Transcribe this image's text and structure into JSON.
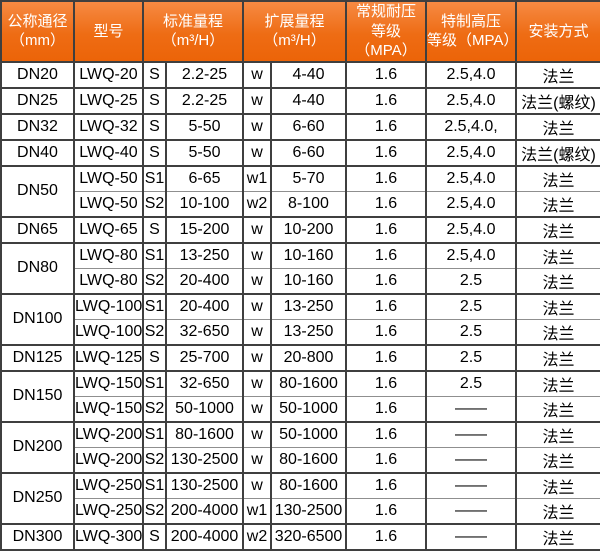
{
  "colors": {
    "header_bg_top": "#f68a43",
    "header_bg_mid": "#ee6c14",
    "header_bg_bottom": "#ec6408",
    "header_text": "#ffffff",
    "border_dark": "#3f3f3f",
    "border_thin": "#8f8f8f",
    "body_text": "#000000",
    "body_bg": "#ffffff"
  },
  "table": {
    "headers": [
      {
        "key": "diameter",
        "label": "公称通径\n（mm）",
        "colspan": 1
      },
      {
        "key": "model",
        "label": "型号",
        "colspan": 1
      },
      {
        "key": "standard-range",
        "label": "标准量程\n（m³/H）",
        "colspan": 2
      },
      {
        "key": "extended-range",
        "label": "扩展量程\n（m³/H）",
        "colspan": 2
      },
      {
        "key": "normal-pressure",
        "label": "常规耐压\n等级（MPA）",
        "colspan": 1
      },
      {
        "key": "special-pressure",
        "label": "特制高压\n等级（MPA）",
        "colspan": 1
      },
      {
        "key": "install",
        "label": "安装方式",
        "colspan": 1
      }
    ],
    "rows": [
      {
        "dn": "DN20",
        "span": 1,
        "model": "LWQ-20",
        "s": "S",
        "std": "2.2-25",
        "w": "w",
        "ext": "4-40",
        "normal": "1.6",
        "special": "2.5,4.0",
        "install": "法兰",
        "end": true
      },
      {
        "dn": "DN25",
        "span": 1,
        "model": "LWQ-25",
        "s": "S",
        "std": "2.2-25",
        "w": "w",
        "ext": "4-40",
        "normal": "1.6",
        "special": "2.5,4.0",
        "install": "法兰(螺纹)",
        "end": true
      },
      {
        "dn": "DN32",
        "span": 1,
        "model": "LWQ-32",
        "s": "S",
        "std": "5-50",
        "w": "w",
        "ext": "6-60",
        "normal": "1.6",
        "special": "2.5,4.0,",
        "install": "法兰",
        "end": true
      },
      {
        "dn": "DN40",
        "span": 1,
        "model": "LWQ-40",
        "s": "S",
        "std": "5-50",
        "w": "w",
        "ext": "6-60",
        "normal": "1.6",
        "special": "2.5,4.0",
        "install": "法兰(螺纹)",
        "end": true
      },
      {
        "dn": "DN50",
        "span": 2,
        "model": "LWQ-50",
        "s": "S1",
        "std": "6-65",
        "w": "w1",
        "ext": "5-70",
        "normal": "1.6",
        "special": "2.5,4.0",
        "install": "法兰",
        "end": false
      },
      {
        "model": "LWQ-50",
        "s": "S2",
        "std": "10-100",
        "w": "w2",
        "ext": "8-100",
        "normal": "1.6",
        "special": "2.5,4.0",
        "install": "法兰",
        "end": true
      },
      {
        "dn": "DN65",
        "span": 1,
        "model": "LWQ-65",
        "s": "S",
        "std": "15-200",
        "w": "w",
        "ext": "10-200",
        "normal": "1.6",
        "special": "2.5,4.0",
        "install": "法兰",
        "end": true
      },
      {
        "dn": "DN80",
        "span": 2,
        "model": "LWQ-80",
        "s": "S1",
        "std": "13-250",
        "w": "w",
        "ext": "10-160",
        "normal": "1.6",
        "special": "2.5,4.0",
        "install": "法兰",
        "end": false
      },
      {
        "model": "LWQ-80",
        "s": "S2",
        "std": "20-400",
        "w": "w",
        "ext": "10-160",
        "normal": "1.6",
        "special": "2.5",
        "install": "法兰",
        "end": true
      },
      {
        "dn": "DN100",
        "span": 2,
        "model": "LWQ-100",
        "s": "S1",
        "std": "20-400",
        "w": "w",
        "ext": "13-250",
        "normal": "1.6",
        "special": "2.5",
        "install": "法兰",
        "end": false
      },
      {
        "model": "LWQ-100",
        "s": "S2",
        "std": "32-650",
        "w": "w",
        "ext": "13-250",
        "normal": "1.6",
        "special": "2.5",
        "install": "法兰",
        "end": true
      },
      {
        "dn": "DN125",
        "span": 1,
        "model": "LWQ-125",
        "s": "S",
        "std": "25-700",
        "w": "w",
        "ext": "20-800",
        "normal": "1.6",
        "special": "2.5",
        "install": "法兰",
        "end": true
      },
      {
        "dn": "DN150",
        "span": 2,
        "model": "LWQ-150",
        "s": "S1",
        "std": "32-650",
        "w": "w",
        "ext": "80-1600",
        "normal": "1.6",
        "special": "2.5",
        "install": "法兰",
        "end": false
      },
      {
        "model": "LWQ-150",
        "s": "S2",
        "std": "50-1000",
        "w": "w",
        "ext": "50-1000",
        "normal": "1.6",
        "special": "——",
        "install": "法兰",
        "end": true
      },
      {
        "dn": "DN200",
        "span": 2,
        "model": "LWQ-200",
        "s": "S1",
        "std": "80-1600",
        "w": "w",
        "ext": "50-1000",
        "normal": "1.6",
        "special": "——",
        "install": "法兰",
        "end": false
      },
      {
        "model": "LWQ-200",
        "s": "S2",
        "std": "130-2500",
        "w": "w",
        "ext": "80-1600",
        "normal": "1.6",
        "special": "——",
        "install": "法兰",
        "end": true
      },
      {
        "dn": "DN250",
        "span": 2,
        "model": "LWQ-250",
        "s": "S1",
        "std": "130-2500",
        "w": "w",
        "ext": "80-1600",
        "normal": "1.6",
        "special": "——",
        "install": "法兰",
        "end": false
      },
      {
        "model": "LWQ-250",
        "s": "S2",
        "std": "200-4000",
        "w": "w1",
        "ext": "130-2500",
        "normal": "1.6",
        "special": "——",
        "install": "法兰",
        "end": true
      },
      {
        "dn": "DN300",
        "span": 1,
        "model": "LWQ-300",
        "s": "S",
        "std": "200-4000",
        "w": "w2",
        "ext": "320-6500",
        "normal": "1.6",
        "special": "——",
        "install": "法兰",
        "end": true
      }
    ]
  }
}
